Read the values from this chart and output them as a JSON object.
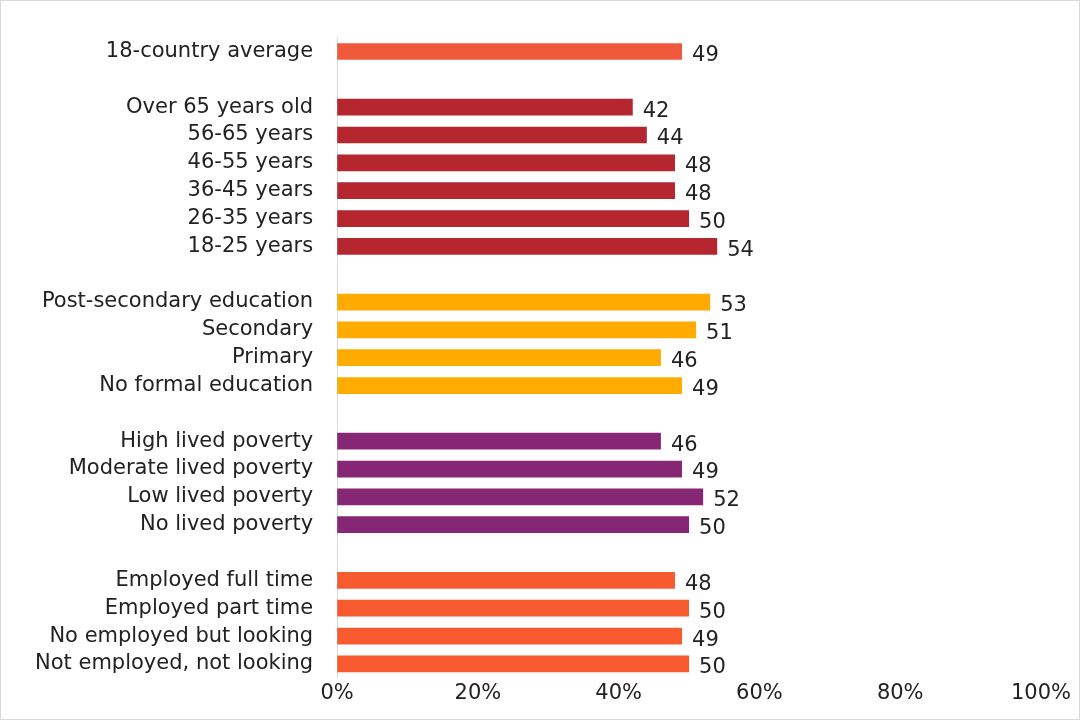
{
  "chart_data": {
    "type": "bar",
    "orientation": "horizontal",
    "categories": [
      "18-country average",
      null,
      "Over 65 years old",
      "56-65 years",
      "46-55 years",
      "36-45 years",
      "26-35 years",
      "18-25 years",
      null,
      "Post-secondary education",
      "Secondary",
      "Primary",
      "No formal education",
      null,
      "High lived poverty",
      "Moderate lived poverty",
      "Low lived poverty",
      "No lived poverty",
      null,
      "Employed full time",
      "Employed part time",
      "No employed but looking",
      "Not employed, not looking"
    ],
    "values": [
      49,
      null,
      42,
      44,
      48,
      48,
      50,
      54,
      null,
      53,
      51,
      46,
      49,
      null,
      46,
      49,
      52,
      50,
      null,
      48,
      50,
      49,
      50
    ],
    "colors": [
      "#f05a3c",
      null,
      "#b5262f",
      "#b5262f",
      "#b5262f",
      "#b5262f",
      "#b5262f",
      "#b5262f",
      null,
      "#ffab00",
      "#ffab00",
      "#ffab00",
      "#ffab00",
      null,
      "#862775",
      "#862775",
      "#862775",
      "#862775",
      null,
      "#f75a2f",
      "#f75a2f",
      "#f75a2f",
      "#f75a2f"
    ],
    "xlim": [
      0,
      100
    ],
    "xticks": [
      {
        "value": 0,
        "label": "0%"
      },
      {
        "value": 20,
        "label": "20%"
      },
      {
        "value": 40,
        "label": "40%"
      },
      {
        "value": 60,
        "label": "60%"
      },
      {
        "value": 80,
        "label": "80%"
      },
      {
        "value": 100,
        "label": "100%"
      }
    ],
    "grid": false,
    "legend": false,
    "data_labels": true
  }
}
